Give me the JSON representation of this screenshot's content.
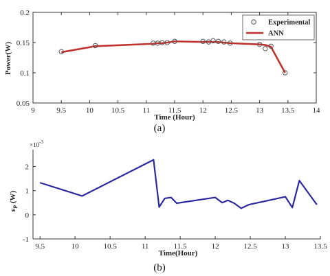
{
  "chart_data": [
    {
      "type": "line",
      "title": "",
      "xlabel": "Time (Hour)",
      "ylabel": "Power(W)",
      "xlim": [
        9.0,
        14.0
      ],
      "ylim": [
        0.05,
        0.2
      ],
      "xticks": [
        "9",
        "9.5",
        "10",
        "10.5",
        "11",
        "11.5",
        "12",
        "12.5",
        "13",
        "13.5",
        "14"
      ],
      "yticks": [
        "0.05",
        "0.1",
        "0.15",
        "0.2"
      ],
      "caption": "(a)",
      "legend_position": "top-right",
      "series": [
        {
          "name": "Experimental",
          "style": "markers",
          "color": "#555555",
          "x": [
            9.5,
            10.1,
            11.12,
            11.2,
            11.28,
            11.37,
            11.5,
            12.0,
            12.1,
            12.18,
            12.27,
            12.37,
            12.48,
            13.0,
            13.1,
            13.2,
            13.45
          ],
          "y": [
            0.135,
            0.145,
            0.149,
            0.149,
            0.15,
            0.15,
            0.152,
            0.152,
            0.151,
            0.153,
            0.152,
            0.151,
            0.149,
            0.147,
            0.14,
            0.144,
            0.1
          ]
        },
        {
          "name": "ANN",
          "style": "line",
          "color": "#c0312b",
          "x": [
            9.5,
            10.1,
            11.12,
            11.2,
            11.28,
            11.37,
            11.5,
            12.0,
            12.1,
            12.18,
            12.27,
            12.37,
            12.48,
            13.0,
            13.1,
            13.2,
            13.45
          ],
          "y": [
            0.134,
            0.144,
            0.148,
            0.149,
            0.149,
            0.15,
            0.152,
            0.151,
            0.151,
            0.151,
            0.151,
            0.15,
            0.149,
            0.147,
            0.146,
            0.143,
            0.1
          ]
        }
      ]
    },
    {
      "type": "line",
      "title": "",
      "xlabel": "Time(Hour)",
      "ylabel": "ε_P (W)",
      "ylabel_main": "ε",
      "ylabel_sub": "P",
      "ylabel_unit": " (W)",
      "exponent_label": "×10",
      "exponent_power": "-3",
      "xlim": [
        9.4,
        13.5
      ],
      "ylim": [
        -1,
        2.7
      ],
      "xticks": [
        "9.5",
        "10",
        "10.5",
        "11",
        "11.5",
        "12",
        "12.5",
        "13",
        "13.5"
      ],
      "yticks": [
        "-1",
        "0",
        "1",
        "2"
      ],
      "caption": "(b)",
      "series": [
        {
          "color": "#2a2a9e",
          "x": [
            9.5,
            10.1,
            11.12,
            11.2,
            11.28,
            11.37,
            11.45,
            12.0,
            12.1,
            12.18,
            12.27,
            12.37,
            12.48,
            13.0,
            13.1,
            13.2,
            13.45
          ],
          "y": [
            1.33,
            0.78,
            2.28,
            0.32,
            0.68,
            0.72,
            0.48,
            0.72,
            0.5,
            0.6,
            0.48,
            0.27,
            0.42,
            0.75,
            0.3,
            1.42,
            0.42
          ]
        }
      ]
    }
  ]
}
